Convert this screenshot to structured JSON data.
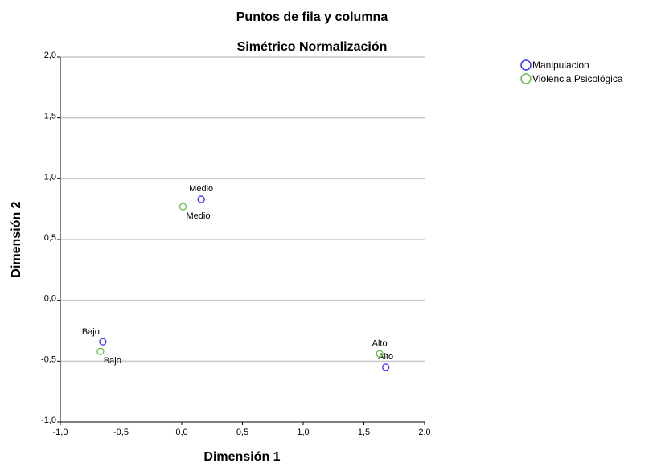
{
  "chart_data": {
    "type": "scatter",
    "title": "Puntos de fila y columna",
    "subtitle": "Simétrico Normalización",
    "xlabel": "Dimensión 1",
    "ylabel": "Dimensión 2",
    "xlim": [
      -1.0,
      2.0
    ],
    "ylim": [
      -1.0,
      2.0
    ],
    "xticks": [
      -1.0,
      -0.5,
      0.0,
      0.5,
      1.0,
      1.5,
      2.0
    ],
    "yticks": [
      -1.0,
      -0.5,
      0.0,
      0.5,
      1.0,
      1.5,
      2.0
    ],
    "xtick_labels": [
      "-1,0",
      "-0,5",
      "0,0",
      "0,5",
      "1,0",
      "1,5",
      "2,0"
    ],
    "ytick_labels": [
      "-1,0",
      "-0,5",
      "0,0",
      "0,5",
      "1,0",
      "1,5",
      "2,0"
    ],
    "grid": "horizontal",
    "legend_position": "top-right",
    "series": [
      {
        "name": "Manipulacion",
        "color": "#3333ff",
        "marker": "open-circle",
        "points": [
          {
            "label": "Medio",
            "x": 0.16,
            "y": 0.83,
            "label_pos": "above"
          },
          {
            "label": "Bajo",
            "x": -0.65,
            "y": -0.34,
            "label_pos": "above-left"
          },
          {
            "label": "Alto",
            "x": 1.68,
            "y": -0.55,
            "label_pos": "above"
          }
        ]
      },
      {
        "name": "Violencia Psicológica",
        "color": "#66bb44",
        "marker": "open-circle",
        "points": [
          {
            "label": "Medio",
            "x": 0.01,
            "y": 0.77,
            "label_pos": "below-right"
          },
          {
            "label": "Bajo",
            "x": -0.67,
            "y": -0.42,
            "label_pos": "below-right"
          },
          {
            "label": "Alto",
            "x": 1.63,
            "y": -0.44,
            "label_pos": "above"
          }
        ]
      }
    ]
  }
}
